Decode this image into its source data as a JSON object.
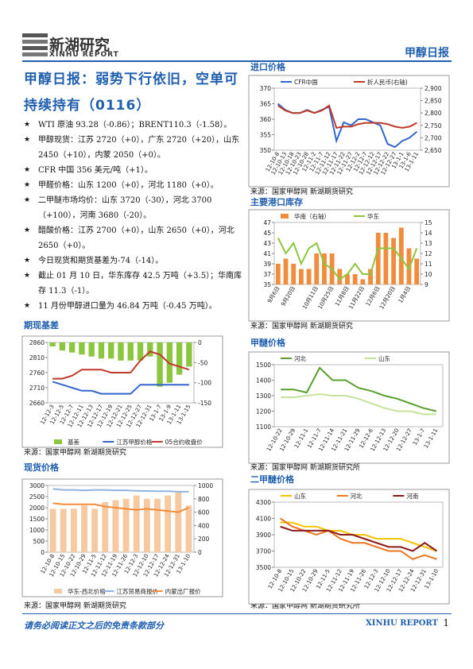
{
  "header": {
    "logo": "新湖研究",
    "logo_sub": "XINHU REPORT",
    "report_name": "甲醇日报"
  },
  "title": "甲醇日报：弱势下行依旧，空单可持续持有（0116）",
  "bullets": [
    "WTI 原油 93.28（-0.86）；BRENT110.3（-1.58）。",
    "甲醇现货：江苏 2720（+0），广东 2720（+20），山东 2450（+10），内蒙 2050（+0）。",
    "CFR 中国 356 美元/吨（+1）。",
    "甲醛价格：山东 1200（+0），河北 1180（+0）。",
    "二甲醚市场均价：山东 3720（-30），河北 3700（+100），河南 3680（-20）。",
    "醋酸价格：江苏 2700（+0），山东 2650（+0），河北 2650（+0）。",
    "今日现货和期货基差为-74（-14）。",
    "截止 01 月 10 日，华东库存 42.5 万吨（+3.5）；华南库存 11.3（-1）。",
    "11 月份甲醇进口量为 46.84 万吨（-0.45 万吨）。"
  ],
  "chart_data": [
    {
      "type": "combo",
      "section": "进口价格",
      "source": "来源：国家甲醇网 新湖期货研究",
      "legend": "top",
      "categories": [
        "12-10-8",
        "12-10-13",
        "12-10-18",
        "12-10-23",
        "12-10-28",
        "12-11-2",
        "12-11-7",
        "12-11-12",
        "12-11-17",
        "12-11-22",
        "12-11-27",
        "12-12-2",
        "12-12-7",
        "12-12-12",
        "12-12-17",
        "12-12-22",
        "12-12-27",
        "13-1-1",
        "13-1-6",
        "13-1-11"
      ],
      "ylim": [
        350,
        370
      ],
      "yticks": [
        350,
        355,
        360,
        365,
        370
      ],
      "y2lim": [
        2650,
        2900
      ],
      "y2ticks": [
        {
          "value": 2650,
          "label": "2,650"
        },
        {
          "value": 2700,
          "label": "2,700"
        },
        {
          "value": 2750,
          "label": "2,750"
        },
        {
          "value": 2800,
          "label": "2,800"
        },
        {
          "value": 2850,
          "label": "2,850"
        },
        {
          "value": 2900,
          "label": "2,900"
        }
      ],
      "series": [
        {
          "name": "CFR中国",
          "type": "line",
          "color": "#3366cc",
          "values": [
            365,
            363,
            362,
            362,
            363,
            362,
            363,
            364,
            353,
            359,
            358,
            360,
            360,
            359,
            358,
            352,
            351,
            353,
            354,
            356
          ]
        },
        {
          "name": "折人民币(右轴)",
          "type": "line",
          "axis": "y2",
          "color": "#c0392b",
          "values": [
            2830,
            2810,
            2800,
            2800,
            2810,
            2800,
            2810,
            2830,
            2740,
            2745,
            2745,
            2755,
            2760,
            2760,
            2760,
            2755,
            2745,
            2740,
            2745,
            2760
          ]
        }
      ]
    },
    {
      "type": "combo",
      "section": "主要港口库存",
      "source": "来源：国家甲醇网 新湖期货研究",
      "legend": "top",
      "categories": [
        "9月6日",
        null,
        "9月20日",
        null,
        null,
        "10月11日",
        null,
        "10月25日",
        null,
        "11月8日",
        null,
        "11月22日",
        null,
        "12月6日",
        null,
        "12月20日",
        null,
        "1月4日",
        null
      ],
      "ylim": [
        35,
        47
      ],
      "yticks": [
        35,
        37,
        39,
        41,
        43,
        45,
        47
      ],
      "y2lim": [
        9,
        15
      ],
      "y2ticks": [
        9,
        10,
        11,
        12,
        13,
        14,
        15
      ],
      "series": [
        {
          "name": "华南（右轴）",
          "type": "bar",
          "axis": "y2",
          "color": "#f08c3c",
          "values": [
            11,
            11.5,
            11,
            10.5,
            10.5,
            12,
            12,
            12,
            10.5,
            10,
            10,
            9.5,
            10.5,
            14,
            14,
            13.5,
            14.5,
            12.5,
            11.5
          ]
        },
        {
          "name": "华东",
          "type": "line",
          "color": "#8cc63e",
          "values": [
            44,
            41,
            43,
            39,
            42,
            43,
            39,
            38,
            36,
            37,
            39,
            37,
            37,
            42,
            42,
            42,
            40,
            38,
            42
          ]
        }
      ]
    },
    {
      "type": "combo",
      "section": "期现基差",
      "source": "来源：国家甲醇网 新湖期货研究",
      "legend": "bottom",
      "categories": [
        "12-12-3",
        "12-12-5",
        "12-12-7",
        "12-12-11",
        "12-12-13",
        "12-12-17",
        "12-12-19",
        "12-12-21",
        "12-12-25",
        "12-12-27",
        "12-12-31",
        "13-1-7",
        "13-1-9",
        "13-1-11",
        "13-1-15"
      ],
      "ylim": [
        2660,
        2860
      ],
      "yticks": [
        2660,
        2710,
        2760,
        2810,
        2860
      ],
      "y2lim": [
        -150,
        0
      ],
      "y2ticks": [
        0,
        -50,
        -100,
        -150
      ],
      "series": [
        {
          "name": "基差",
          "type": "bar",
          "axis": "y2",
          "color": "#8cc63e",
          "values": [
            -10,
            -20,
            -25,
            -30,
            -35,
            -40,
            -40,
            -45,
            -45,
            -45,
            -35,
            -110,
            -100,
            -80,
            -60
          ]
        },
        {
          "name": "江苏甲醇价格",
          "type": "line",
          "color": "#3366cc",
          "values": [
            2730,
            2720,
            2710,
            2700,
            2700,
            2690,
            2690,
            2690,
            2690,
            2720,
            2720,
            2720,
            2720,
            2720,
            2720
          ]
        },
        {
          "name": "05合约收盘价",
          "type": "line",
          "color": "#c0392b",
          "values": [
            2740,
            2740,
            2750,
            2770,
            2770,
            2770,
            2760,
            2760,
            2760,
            2800,
            2830,
            2820,
            2790,
            2780,
            2770
          ]
        }
      ]
    },
    {
      "type": "combo",
      "section": "现货价格",
      "source": "来源：国家甲醇网 新湖期货研究",
      "legend": "bottom",
      "categories": [
        "12-10-8",
        "12-10-15",
        "12-10-22",
        "12-10-29",
        "12-11-5",
        "12-11-12",
        "12-11-19",
        "12-11-26",
        "12-12-3",
        "12-12-10",
        "12-12-17",
        "12-12-24",
        "12-12-31",
        "13-1-10"
      ],
      "ylim": [
        0,
        3000
      ],
      "yticks": [
        0,
        500,
        1000,
        1500,
        2000,
        2500,
        3000
      ],
      "y2lim": [
        0,
        1000
      ],
      "y2ticks": [
        0,
        200,
        400,
        600,
        800,
        1000
      ],
      "series": [
        {
          "name": "华东-西北价格",
          "type": "bar",
          "axis": "y2",
          "color": "#f7c9a0",
          "values": [
            650,
            650,
            650,
            700,
            650,
            750,
            780,
            800,
            850,
            800,
            800,
            850,
            900,
            700
          ]
        },
        {
          "name": "江苏贸易商报价",
          "type": "line",
          "color": "#8fb4e0",
          "values": [
            2850,
            2800,
            2800,
            2780,
            2800,
            2800,
            2780,
            2780,
            2760,
            2750,
            2740,
            2740,
            2720,
            2720
          ]
        },
        {
          "name": "内蒙出厂报价",
          "type": "line",
          "color": "#f08c3c",
          "values": [
            2200,
            2150,
            2150,
            2150,
            2150,
            2050,
            2000,
            1950,
            1900,
            1950,
            1900,
            1850,
            1800,
            2000
          ]
        }
      ]
    },
    {
      "type": "combo",
      "section": "甲醚价格",
      "source": "来源：国家甲醇网 新湖期货研究所",
      "legend": "top",
      "categories": [
        "12-10-22",
        "12-10-29",
        "12-11-1",
        "12-11-7",
        "12-11-14",
        "12-11-21",
        "12-11-29",
        "12-12-6",
        "12-12-13",
        "12-12-20",
        "12-12-27",
        "13-1-7",
        "13-1-11"
      ],
      "ylim": [
        1100,
        1500
      ],
      "yticks": [
        1100,
        1200,
        1300,
        1400,
        1500
      ],
      "series": [
        {
          "name": "河北",
          "type": "line",
          "color": "#5a9e2f",
          "values": [
            1340,
            1340,
            1320,
            1480,
            1400,
            1400,
            1350,
            1330,
            1300,
            1280,
            1250,
            1220,
            1200
          ]
        },
        {
          "name": "山东",
          "type": "line",
          "color": "#c5e39a",
          "values": [
            1290,
            1290,
            1300,
            1310,
            1300,
            1300,
            1280,
            1250,
            1220,
            1200,
            1200,
            1180,
            1180
          ]
        }
      ]
    },
    {
      "type": "combo",
      "section": "二甲醚价格",
      "source": "来源：国家甲醇网 新湖期货研究所",
      "legend": "top",
      "categories": [
        "12-10-8",
        "12-10-15",
        "12-10-22",
        "12-10-29",
        "12-11-5",
        "12-11-12",
        "12-11-19",
        "12-11-26",
        "12-12-3",
        "12-12-10",
        "12-12-17",
        "12-12-24",
        "12-12-31",
        "13-1-10"
      ],
      "ylim": [
        3500,
        4300
      ],
      "yticks": [
        3500,
        3700,
        3900,
        4100,
        4300
      ],
      "series": [
        {
          "name": "山东",
          "type": "line",
          "color": "#f5c400",
          "values": [
            4050,
            4050,
            4000,
            4000,
            3950,
            3950,
            3900,
            3900,
            3850,
            3850,
            3850,
            3800,
            3750,
            3700
          ]
        },
        {
          "name": "河北",
          "type": "line",
          "color": "#e87722",
          "values": [
            4100,
            4000,
            3950,
            3900,
            3950,
            3850,
            3800,
            3800,
            3750,
            3700,
            3700,
            3600,
            3650,
            3600
          ]
        },
        {
          "name": "河南",
          "type": "line",
          "color": "#8b1a1a",
          "values": [
            4000,
            3950,
            3950,
            3950,
            3950,
            3900,
            3900,
            3850,
            3800,
            3750,
            3750,
            3700,
            3800,
            3700
          ]
        }
      ]
    }
  ],
  "footer": {
    "disclaimer": "请务必阅读正文之后的免责条款部分",
    "brand": "XINHU REPORT",
    "page": "1"
  }
}
